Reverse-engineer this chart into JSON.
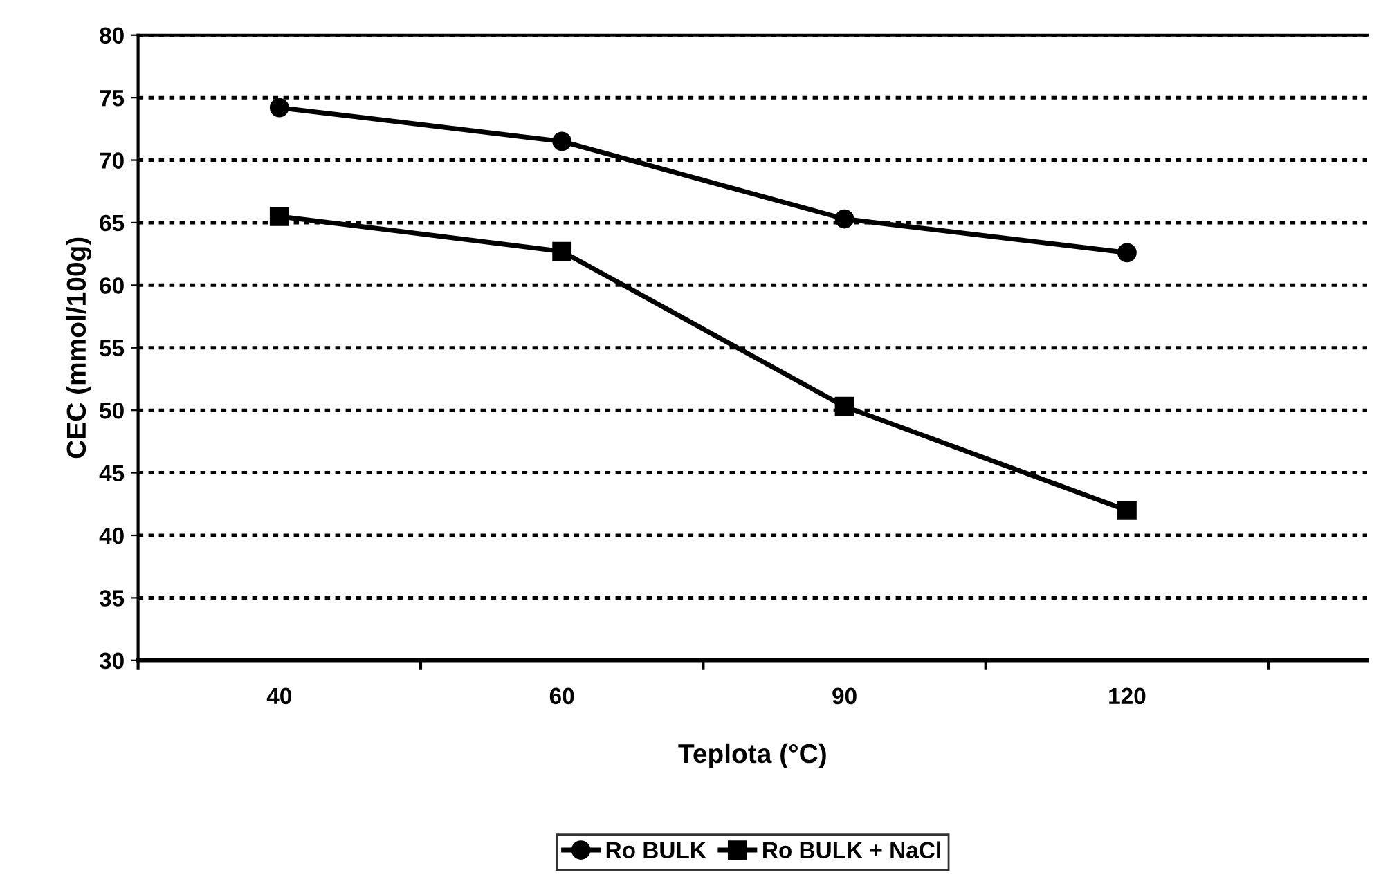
{
  "chart_data": {
    "type": "line",
    "xlabel": "Teplota (°C)",
    "ylabel": "CEC (mmol/100g)",
    "categories": [
      "40",
      "60",
      "90",
      "120"
    ],
    "series": [
      {
        "name": "Ro BULK",
        "color": "#000000",
        "marker": "circle",
        "values": [
          74.2,
          71.5,
          65.3,
          62.6
        ]
      },
      {
        "name": "Ro BULK + NaCl",
        "color": "#000000",
        "marker": "square",
        "values": [
          65.5,
          62.7,
          50.3,
          42
        ]
      }
    ],
    "ylim": [
      30,
      80
    ],
    "yticks": [
      30,
      35,
      40,
      45,
      50,
      55,
      60,
      65,
      70,
      75,
      80
    ],
    "grid": "y",
    "legend": "bottom",
    "line_style": "solid"
  }
}
